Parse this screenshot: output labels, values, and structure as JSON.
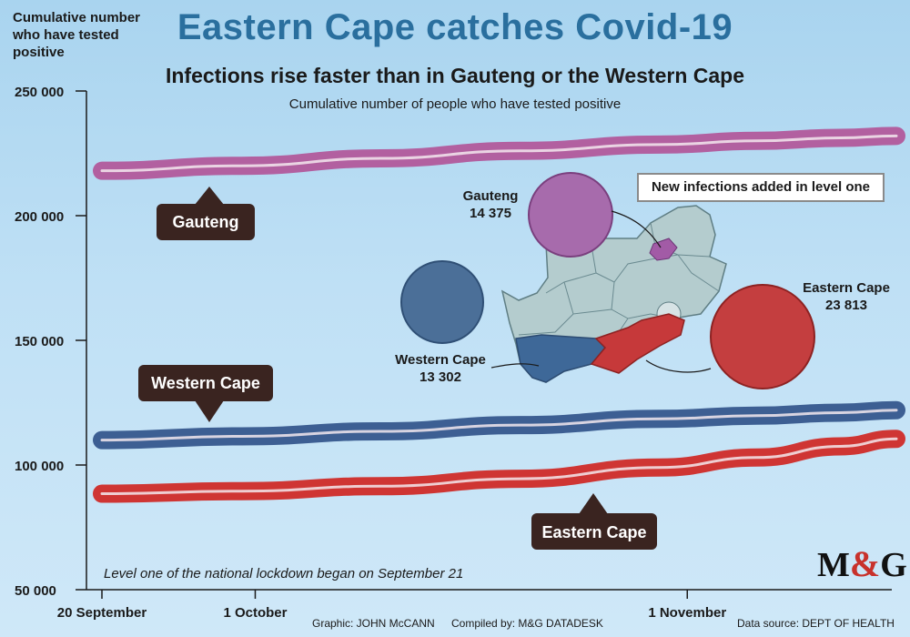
{
  "header": {
    "title": "Eastern Cape catches Covid-19",
    "subtitle": "Infections rise faster than in Gauteng or the Western Cape",
    "caption": "Cumulative number of people who have tested positive"
  },
  "annotations": {
    "new_infections_box": "New infections added in level one",
    "lockdown_note": "Level one of the national lockdown began on September 21"
  },
  "map_labels": [
    {
      "name": "Gauteng",
      "value": "14 375"
    },
    {
      "name": "Western Cape",
      "value": "13 302"
    },
    {
      "name": "Eastern Cape",
      "value": "23 813"
    }
  ],
  "footer": {
    "graphic": "Graphic: JOHN McCANN",
    "compiled": "Compiled by: M&G DATADESK",
    "source": "Data source: DEPT OF HEALTH",
    "logo_left": "M",
    "logo_amp": "&",
    "logo_right": "G"
  },
  "chart_data": {
    "type": "line",
    "title": "Eastern Cape catches Covid-19",
    "ylabel": "Cumulative number who have tested positive",
    "ylim": [
      50000,
      250000
    ],
    "yticks": [
      50000,
      100000,
      150000,
      200000,
      250000
    ],
    "ytick_labels": [
      "50 000",
      "100 000",
      "150 000",
      "200 000",
      "250 000"
    ],
    "xlim": [
      "2020-09-20",
      "2020-11-16"
    ],
    "xticks": [
      "2020-09-20",
      "2020-10-01",
      "2020-11-01"
    ],
    "xtick_labels": [
      "20 September",
      "1 October",
      "1 November"
    ],
    "x": [
      "2020-09-20",
      "2020-09-30",
      "2020-10-10",
      "2020-10-20",
      "2020-10-30",
      "2020-11-06",
      "2020-11-12",
      "2020-11-16"
    ],
    "series": [
      {
        "name": "Gauteng",
        "color": "#b260a0",
        "values": [
          218000,
          220000,
          223000,
          226000,
          228500,
          230000,
          231200,
          232000
        ]
      },
      {
        "name": "Western Cape",
        "color": "#3d5f93",
        "values": [
          110000,
          111500,
          113500,
          116000,
          118500,
          119800,
          121000,
          122000
        ]
      },
      {
        "name": "Eastern Cape",
        "color": "#cf3533",
        "values": [
          88500,
          89500,
          91500,
          94500,
          99000,
          103000,
          107500,
          110500
        ]
      }
    ],
    "series_labels": [
      "Gauteng",
      "Western Cape",
      "Eastern Cape"
    ],
    "grid": false
  }
}
